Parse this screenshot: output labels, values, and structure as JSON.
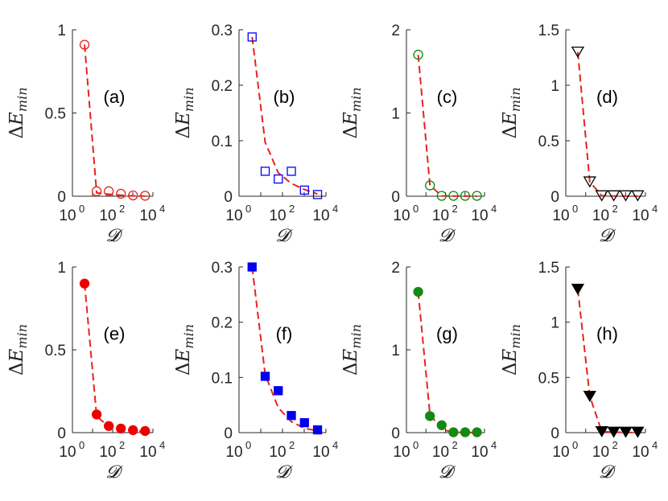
{
  "figure": {
    "colors": {
      "fit_line": "#e8221e",
      "axis": "#262626"
    }
  },
  "chart_data": [
    {
      "id": "a",
      "type": "scatter",
      "panel_label": "(a)",
      "xscale": "log",
      "xlim": [
        1,
        10000
      ],
      "ylim": [
        0,
        1
      ],
      "xticks": [
        {
          "base": "10",
          "exp": "0"
        },
        {
          "base": "10",
          "exp": "2"
        },
        {
          "base": "10",
          "exp": "4"
        }
      ],
      "yticks": [
        "0",
        "0.5",
        "1"
      ],
      "xlabel": "𝓓",
      "ylabel": {
        "delta": "Δ",
        "main": "E",
        "sub": "min"
      },
      "marker": {
        "shape": "circle",
        "filled": false,
        "color": "#e8221e"
      },
      "series": [
        {
          "kind": "points",
          "x": [
            4,
            16,
            64,
            256,
            1024,
            4096
          ],
          "y": [
            0.91,
            0.03,
            0.03,
            0.015,
            0.005,
            0.003
          ]
        },
        {
          "kind": "fit",
          "x": [
            4,
            16,
            64,
            256,
            1024,
            4096
          ],
          "y": [
            0.91,
            0.02,
            0.012,
            0.006,
            0.002,
            0.001
          ]
        }
      ]
    },
    {
      "id": "b",
      "type": "scatter",
      "panel_label": "(b)",
      "xscale": "log",
      "xlim": [
        1,
        10000
      ],
      "ylim": [
        0,
        0.3
      ],
      "xticks": [
        {
          "base": "10",
          "exp": "0"
        },
        {
          "base": "10",
          "exp": "2"
        },
        {
          "base": "10",
          "exp": "4"
        }
      ],
      "yticks": [
        "0",
        "0.1",
        "0.2",
        "0.3"
      ],
      "xlabel": "𝓓",
      "ylabel": {
        "delta": "Δ",
        "main": "E",
        "sub": "min"
      },
      "marker": {
        "shape": "square",
        "filled": false,
        "color": "#0000ff"
      },
      "series": [
        {
          "kind": "points",
          "x": [
            4,
            16,
            64,
            256,
            1024,
            4096
          ],
          "y": [
            0.287,
            0.045,
            0.031,
            0.045,
            0.011,
            0.003
          ]
        },
        {
          "kind": "fit",
          "x": [
            4,
            16,
            64,
            256,
            1024,
            4096
          ],
          "y": [
            0.287,
            0.097,
            0.042,
            0.023,
            0.012,
            0.004
          ]
        }
      ]
    },
    {
      "id": "c",
      "type": "scatter",
      "panel_label": "(c)",
      "xscale": "log",
      "xlim": [
        1,
        10000
      ],
      "ylim": [
        0,
        2
      ],
      "xticks": [
        {
          "base": "10",
          "exp": "0"
        },
        {
          "base": "10",
          "exp": "2"
        },
        {
          "base": "10",
          "exp": "4"
        }
      ],
      "yticks": [
        "0",
        "1",
        "2"
      ],
      "xlabel": "𝓓",
      "ylabel": {
        "delta": "Δ",
        "main": "E",
        "sub": "min"
      },
      "marker": {
        "shape": "circle",
        "filled": false,
        "color": "#0a8a0a"
      },
      "series": [
        {
          "kind": "points",
          "x": [
            4,
            16,
            64,
            256,
            1024,
            4096
          ],
          "y": [
            1.7,
            0.13,
            0.005,
            0.005,
            0.005,
            0.005
          ]
        },
        {
          "kind": "fit",
          "x": [
            4,
            16,
            64,
            256,
            1024,
            4096
          ],
          "y": [
            1.7,
            0.13,
            0.004,
            0.002,
            0.001,
            0.001
          ]
        }
      ]
    },
    {
      "id": "d",
      "type": "scatter",
      "panel_label": "(d)",
      "xscale": "log",
      "xlim": [
        1,
        10000
      ],
      "ylim": [
        0,
        1.5
      ],
      "xticks": [
        {
          "base": "10",
          "exp": "0"
        },
        {
          "base": "10",
          "exp": "2"
        },
        {
          "base": "10",
          "exp": "4"
        }
      ],
      "yticks": [
        "0",
        "0.5",
        "1",
        "1.5"
      ],
      "xlabel": "𝓓",
      "ylabel": {
        "delta": "Δ",
        "main": "E",
        "sub": "min"
      },
      "marker": {
        "shape": "triangle-down",
        "filled": false,
        "color": "#000000"
      },
      "series": [
        {
          "kind": "points",
          "x": [
            4,
            16,
            64,
            256,
            1024,
            4096
          ],
          "y": [
            1.3,
            0.13,
            0.005,
            0.005,
            0.005,
            0.005
          ]
        },
        {
          "kind": "fit",
          "x": [
            4,
            16,
            64,
            256,
            1024,
            4096
          ],
          "y": [
            1.3,
            0.13,
            0.004,
            0.002,
            0.001,
            0.001
          ]
        }
      ]
    },
    {
      "id": "e",
      "type": "scatter",
      "panel_label": "(e)",
      "xscale": "log",
      "xlim": [
        1,
        10000
      ],
      "ylim": [
        0,
        1
      ],
      "xticks": [
        {
          "base": "10",
          "exp": "0"
        },
        {
          "base": "10",
          "exp": "2"
        },
        {
          "base": "10",
          "exp": "4"
        }
      ],
      "yticks": [
        "0",
        "0.5",
        "1"
      ],
      "xlabel": "𝓓",
      "ylabel": {
        "delta": "Δ",
        "main": "E",
        "sub": "min"
      },
      "marker": {
        "shape": "circle",
        "filled": true,
        "color": "#ee0000"
      },
      "series": [
        {
          "kind": "points",
          "x": [
            4,
            16,
            64,
            256,
            1024,
            4096
          ],
          "y": [
            0.9,
            0.11,
            0.04,
            0.025,
            0.015,
            0.01
          ]
        },
        {
          "kind": "fit",
          "x": [
            4,
            16,
            64,
            256,
            1024,
            4096
          ],
          "y": [
            0.9,
            0.1,
            0.035,
            0.02,
            0.012,
            0.008
          ]
        }
      ]
    },
    {
      "id": "f",
      "type": "scatter",
      "panel_label": "(f)",
      "xscale": "log",
      "xlim": [
        1,
        10000
      ],
      "ylim": [
        0,
        0.3
      ],
      "xticks": [
        {
          "base": "10",
          "exp": "0"
        },
        {
          "base": "10",
          "exp": "2"
        },
        {
          "base": "10",
          "exp": "4"
        }
      ],
      "yticks": [
        "0",
        "0.1",
        "0.2",
        "0.3"
      ],
      "xlabel": "𝓓",
      "ylabel": {
        "delta": "Δ",
        "main": "E",
        "sub": "min"
      },
      "marker": {
        "shape": "square",
        "filled": true,
        "color": "#0000ee"
      },
      "series": [
        {
          "kind": "points",
          "x": [
            4,
            16,
            64,
            256,
            1024,
            4096
          ],
          "y": [
            0.3,
            0.102,
            0.076,
            0.031,
            0.018,
            0.005
          ]
        },
        {
          "kind": "fit",
          "x": [
            4,
            16,
            64,
            256,
            1024,
            4096
          ],
          "y": [
            0.3,
            0.105,
            0.045,
            0.02,
            0.008,
            0.003
          ]
        }
      ]
    },
    {
      "id": "g",
      "type": "scatter",
      "panel_label": "(g)",
      "xscale": "log",
      "xlim": [
        1,
        10000
      ],
      "ylim": [
        0,
        2
      ],
      "xticks": [
        {
          "base": "10",
          "exp": "0"
        },
        {
          "base": "10",
          "exp": "2"
        },
        {
          "base": "10",
          "exp": "4"
        }
      ],
      "yticks": [
        "0",
        "1",
        "2"
      ],
      "xlabel": "𝓓",
      "ylabel": {
        "delta": "Δ",
        "main": "E",
        "sub": "min"
      },
      "marker": {
        "shape": "circle",
        "filled": true,
        "color": "#138a13"
      },
      "series": [
        {
          "kind": "points",
          "x": [
            4,
            16,
            64,
            256,
            1024,
            4096
          ],
          "y": [
            1.7,
            0.2,
            0.09,
            0.005,
            0.005,
            0.005
          ]
        },
        {
          "kind": "fit",
          "x": [
            4,
            16,
            64,
            256,
            1024,
            4096
          ],
          "y": [
            1.7,
            0.22,
            0.04,
            0.004,
            0.002,
            0.001
          ]
        }
      ]
    },
    {
      "id": "h",
      "type": "scatter",
      "panel_label": "(h)",
      "xscale": "log",
      "xlim": [
        1,
        10000
      ],
      "ylim": [
        0,
        1.5
      ],
      "xticks": [
        {
          "base": "10",
          "exp": "0"
        },
        {
          "base": "10",
          "exp": "2"
        },
        {
          "base": "10",
          "exp": "4"
        }
      ],
      "yticks": [
        "0",
        "0.5",
        "1",
        "1.5"
      ],
      "xlabel": "𝓓",
      "ylabel": {
        "delta": "Δ",
        "main": "E",
        "sub": "min"
      },
      "marker": {
        "shape": "triangle-down",
        "filled": true,
        "color": "#000000"
      },
      "series": [
        {
          "kind": "points",
          "x": [
            4,
            16,
            64,
            256,
            1024,
            4096
          ],
          "y": [
            1.3,
            0.33,
            0.01,
            0.005,
            0.005,
            0.005
          ]
        },
        {
          "kind": "fit",
          "x": [
            4,
            16,
            64,
            256,
            1024,
            4096
          ],
          "y": [
            1.3,
            0.33,
            0.01,
            0.004,
            0.002,
            0.001
          ]
        }
      ]
    }
  ]
}
